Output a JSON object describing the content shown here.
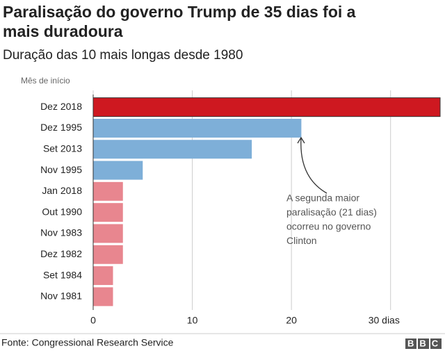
{
  "chart_data": {
    "type": "barh",
    "title": [
      "Paralisação do governo Trump de 35 dias foi a",
      "mais duradoura"
    ],
    "subtitle": "Duração das 10 mais longas desde 1980",
    "y_label": "Mês de início",
    "categories": [
      "Dez 2018",
      "Dez 1995",
      "Set 2013",
      "Nov 1995",
      "Jan 2018",
      "Out 1990",
      "Nov 1983",
      "Dez 1982",
      "Set 1984",
      "Nov 1981"
    ],
    "values": [
      35,
      21,
      16,
      5,
      3,
      3,
      3,
      3,
      2,
      2
    ],
    "colors": [
      "#ce1820",
      "#7eafd8",
      "#7eafd8",
      "#7eafd8",
      "#e8868f",
      "#e8868f",
      "#e8868f",
      "#e8868f",
      "#e8868f",
      "#e8868f"
    ],
    "xlim": [
      0,
      35
    ],
    "xticks": [
      0,
      10,
      20,
      {
        "value": 30,
        "label": "30 dias"
      }
    ],
    "grid": true,
    "annotation": [
      "A segunda maior",
      "paralisação (21 dias)",
      "ocorreu no governo",
      "Clinton"
    ],
    "source": "Fonte: Congressional Research Service",
    "logo": "BBC"
  }
}
